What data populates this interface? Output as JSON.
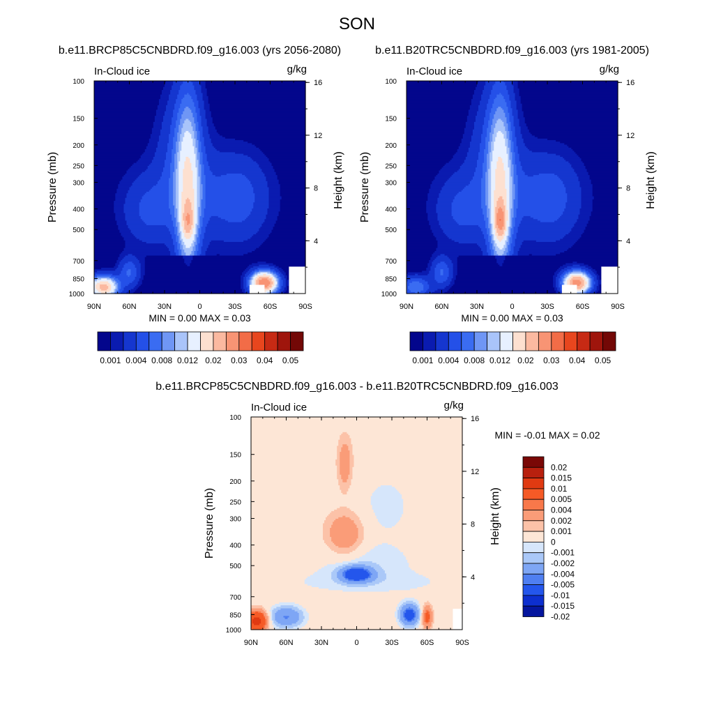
{
  "page": {
    "title": "SON"
  },
  "chart_data": [
    {
      "type": "heatmap",
      "title": "b.e11.BRCP85C5CNBDRD.f09_g16.003 (yrs 2056-2080)",
      "subtitle_left": "In-Cloud ice",
      "subtitle_right": "g/kg",
      "ylabel": "Pressure (mb)",
      "ylabel_right": "Height (km)",
      "x_ticks": [
        "90N",
        "60N",
        "30N",
        "0",
        "30S",
        "60S",
        "90S"
      ],
      "y_ticks": [
        "100",
        "150",
        "200",
        "250",
        "300",
        "400",
        "500",
        "700",
        "850",
        "1000"
      ],
      "y_right_ticks": [
        "16",
        "12",
        "8",
        "4"
      ],
      "stats": "MIN =   0.00  MAX =   0.03",
      "colorbar_labels": [
        "0.001",
        "0.004",
        "0.008",
        "0.012",
        "0.02",
        "0.03",
        "0.04",
        "0.05"
      ],
      "colorbar_colors": [
        "#03068c",
        "#0a1bb0",
        "#1536cf",
        "#2450e8",
        "#3a6cf2",
        "#6f96f5",
        "#a9c4fa",
        "#e7f0ff",
        "#fde0d0",
        "#fbb9a0",
        "#f89474",
        "#f26c47",
        "#e8461e",
        "#c72a14",
        "#9f150c",
        "#730806"
      ]
    },
    {
      "type": "heatmap",
      "title": "b.e11.B20TRC5CNBDRD.f09_g16.003 (yrs 1981-2005)",
      "subtitle_left": "In-Cloud ice",
      "subtitle_right": "g/kg",
      "ylabel": "Pressure (mb)",
      "ylabel_right": "Height (km)",
      "x_ticks": [
        "90N",
        "60N",
        "30N",
        "0",
        "30S",
        "60S",
        "90S"
      ],
      "y_ticks": [
        "100",
        "150",
        "200",
        "250",
        "300",
        "400",
        "500",
        "700",
        "850",
        "1000"
      ],
      "y_right_ticks": [
        "16",
        "12",
        "8",
        "4"
      ],
      "stats": "MIN =   0.00  MAX =   0.03",
      "colorbar_labels": [
        "0.001",
        "0.004",
        "0.008",
        "0.012",
        "0.02",
        "0.03",
        "0.04",
        "0.05"
      ]
    },
    {
      "type": "heatmap",
      "title": "b.e11.BRCP85C5CNBDRD.f09_g16.003 - b.e11.B20TRC5CNBDRD.f09_g16.003",
      "subtitle_left": "In-Cloud ice",
      "subtitle_right": "g/kg",
      "ylabel": "Pressure (mb)",
      "ylabel_right": "Height (km)",
      "x_ticks": [
        "90N",
        "60N",
        "30N",
        "0",
        "30S",
        "60S",
        "90S"
      ],
      "y_ticks": [
        "100",
        "150",
        "200",
        "250",
        "300",
        "400",
        "500",
        "700",
        "850",
        "1000"
      ],
      "y_right_ticks": [
        "16",
        "12",
        "8",
        "4"
      ],
      "stats": "MIN =  -0.01  MAX =   0.02",
      "colorbar_labels": [
        "0.02",
        "0.015",
        "0.01",
        "0.005",
        "0.004",
        "0.002",
        "0.001",
        "0",
        "-0.001",
        "-0.002",
        "-0.004",
        "-0.005",
        "-0.01",
        "-0.015",
        "-0.02"
      ],
      "colorbar_colors": [
        "#7a0806",
        "#b8200e",
        "#e03a12",
        "#f55a26",
        "#f8784a",
        "#fa9c78",
        "#fcc2a8",
        "#fde6d6",
        "#d6e6fb",
        "#aac8f8",
        "#7ea6f5",
        "#4f7ff1",
        "#2456ec",
        "#0d2fcf",
        "#05169e",
        "#02067a"
      ]
    }
  ]
}
